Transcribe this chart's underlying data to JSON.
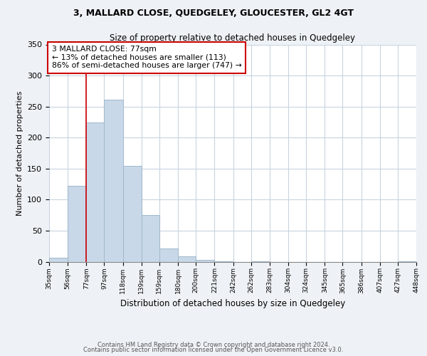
{
  "title": "3, MALLARD CLOSE, QUEDGELEY, GLOUCESTER, GL2 4GT",
  "subtitle": "Size of property relative to detached houses in Quedgeley",
  "xlabel": "Distribution of detached houses by size in Quedgeley",
  "ylabel": "Number of detached properties",
  "bar_color": "#c8d8e8",
  "bar_edge_color": "#a0b8cc",
  "marker_color": "#cc0000",
  "marker_value": 77,
  "bins": [
    35,
    56,
    77,
    97,
    118,
    139,
    159,
    180,
    200,
    221,
    242,
    262,
    283,
    304,
    324,
    345,
    365,
    386,
    407,
    427,
    448
  ],
  "bin_labels": [
    "35sqm",
    "56sqm",
    "77sqm",
    "97sqm",
    "118sqm",
    "139sqm",
    "159sqm",
    "180sqm",
    "200sqm",
    "221sqm",
    "242sqm",
    "262sqm",
    "283sqm",
    "304sqm",
    "324sqm",
    "345sqm",
    "365sqm",
    "386sqm",
    "407sqm",
    "427sqm",
    "448sqm"
  ],
  "values": [
    6,
    122,
    224,
    261,
    154,
    75,
    21,
    9,
    3,
    1,
    0,
    1,
    0,
    0,
    0,
    0,
    0,
    0,
    0,
    1
  ],
  "ylim": [
    0,
    350
  ],
  "yticks": [
    0,
    50,
    100,
    150,
    200,
    250,
    300,
    350
  ],
  "annotation_title": "3 MALLARD CLOSE: 77sqm",
  "annotation_line1": "← 13% of detached houses are smaller (113)",
  "annotation_line2": "86% of semi-detached houses are larger (747) →",
  "footer_line1": "Contains HM Land Registry data © Crown copyright and database right 2024.",
  "footer_line2": "Contains public sector information licensed under the Open Government Licence v3.0.",
  "background_color": "#eef2f6",
  "plot_bg_color": "#ffffff",
  "grid_color": "#c8d4e0"
}
